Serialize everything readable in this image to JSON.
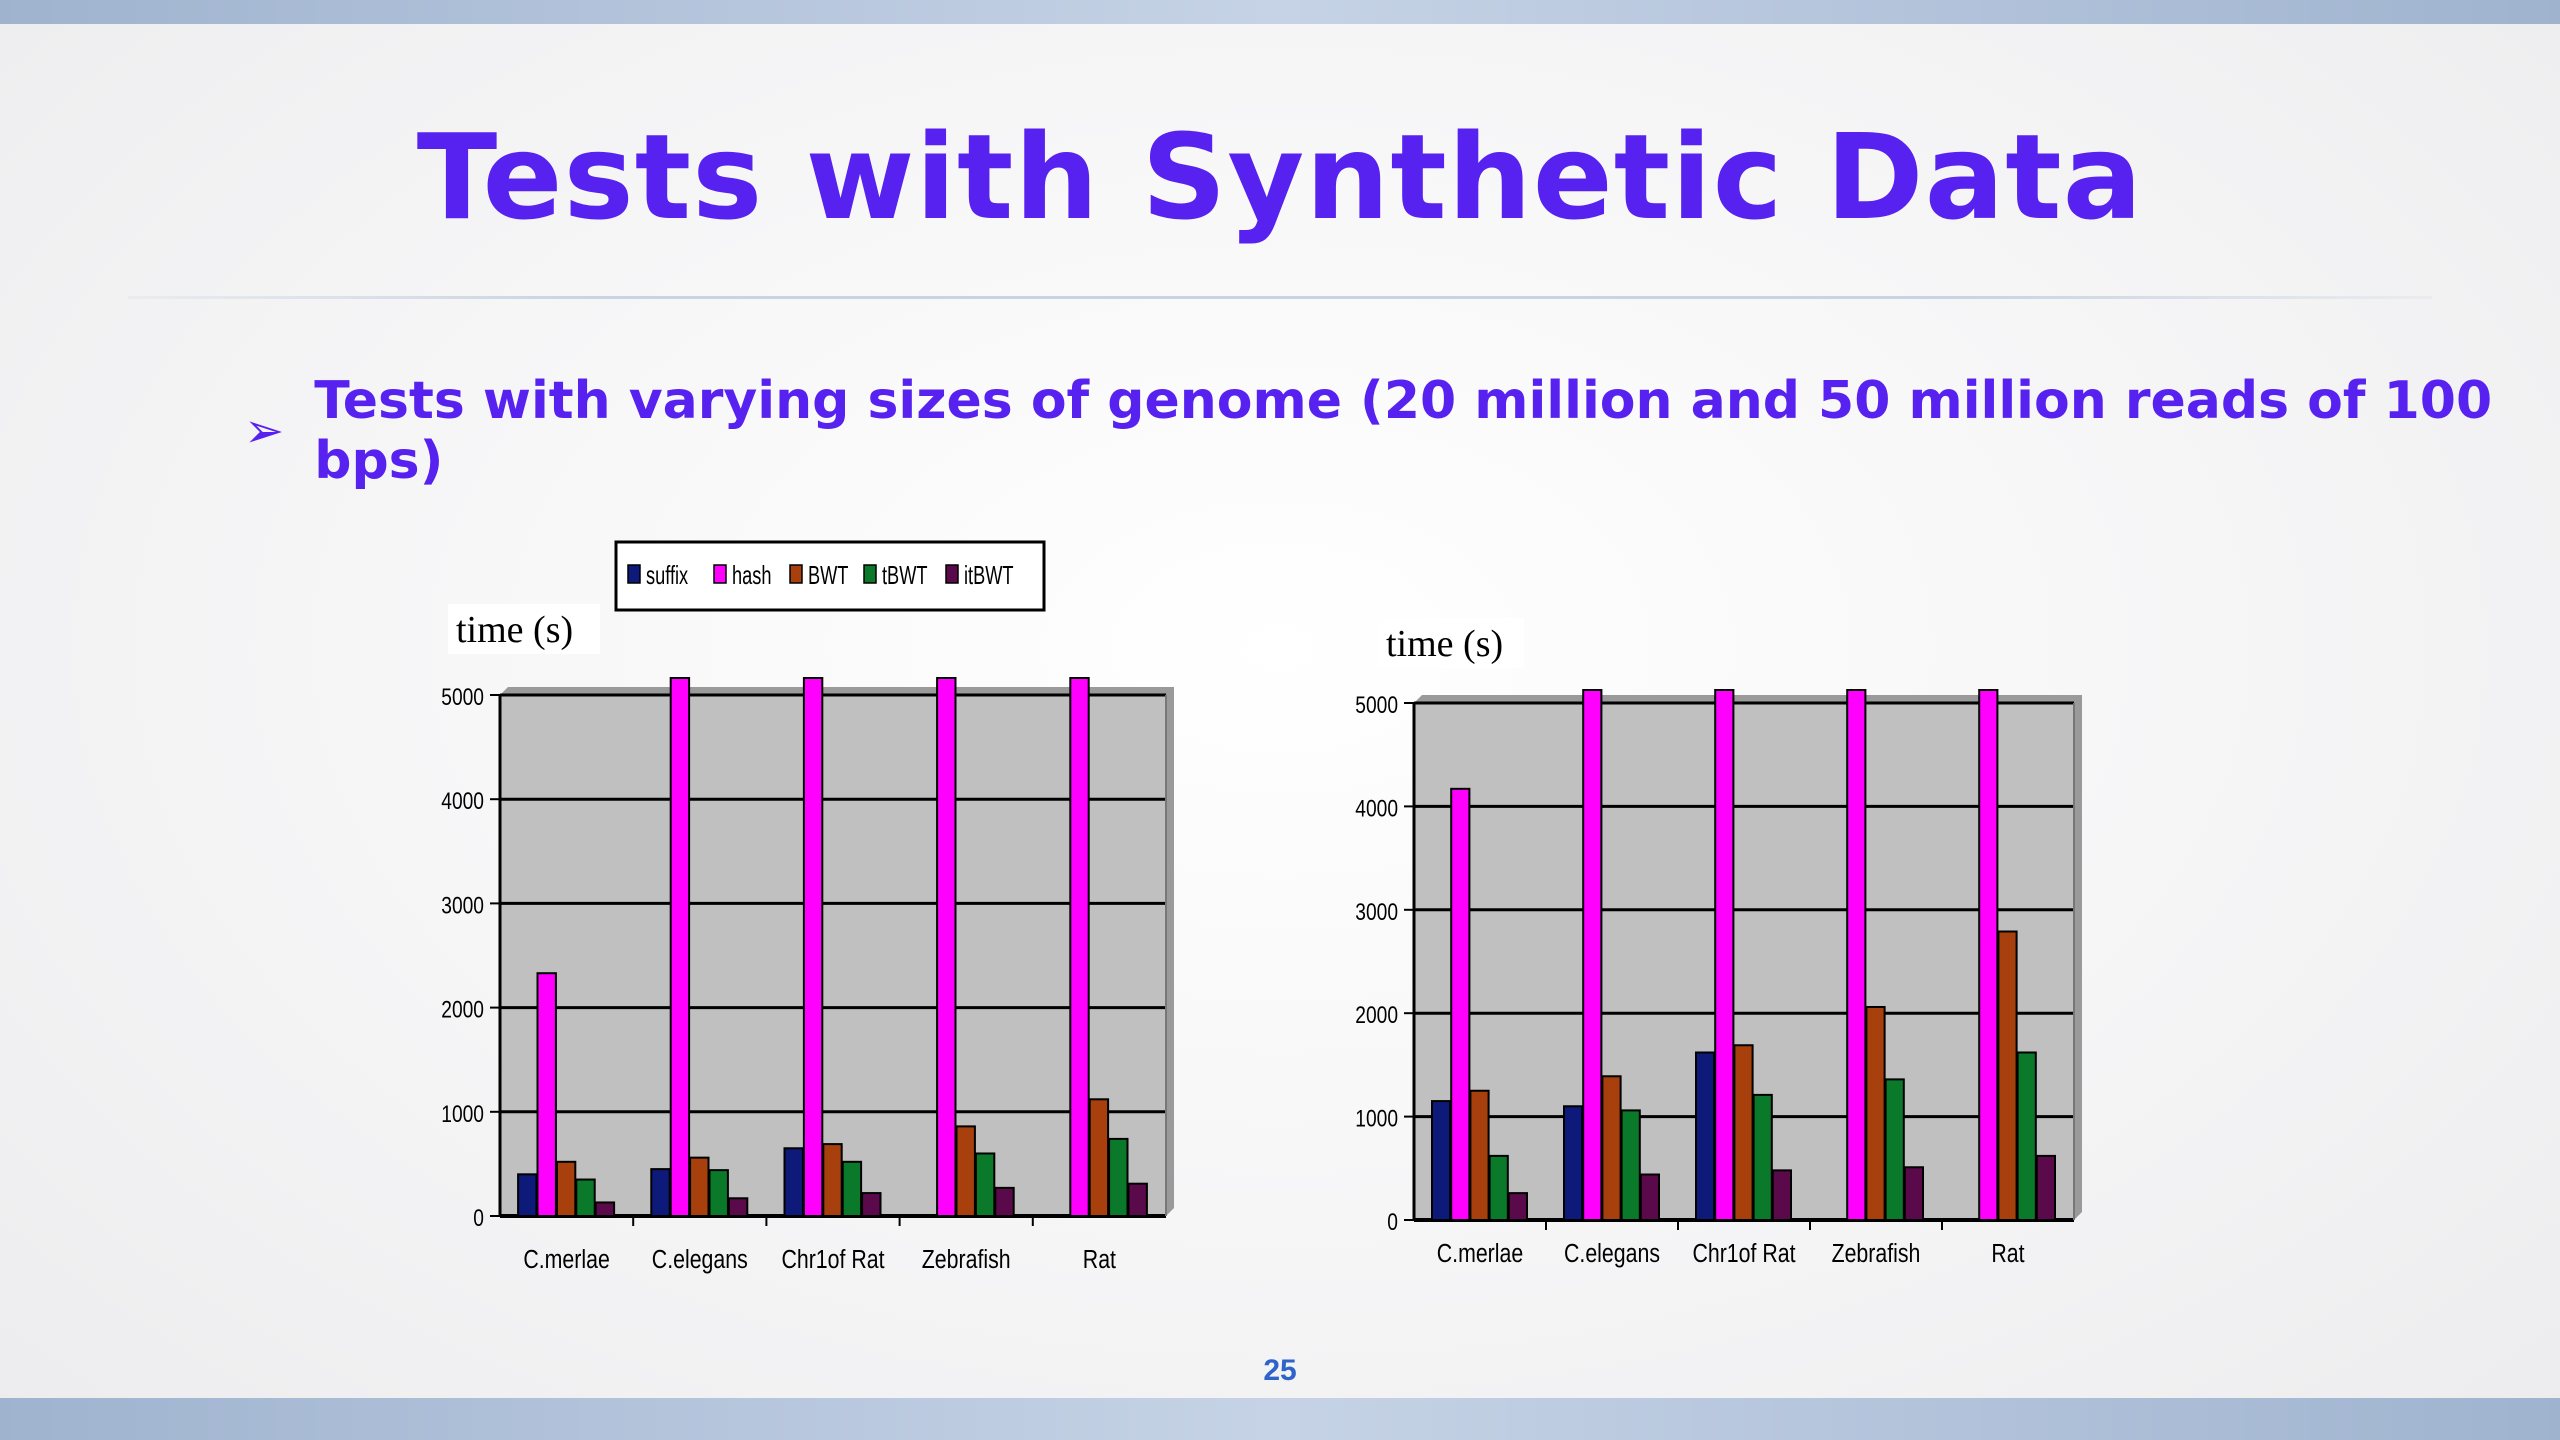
{
  "slide": {
    "title": "Tests with Synthetic Data",
    "bullet_text": "Tests with varying sizes of genome (20 million and 50 million reads of 100 bps)",
    "page_number": "25"
  },
  "colors": {
    "title": "#5722f0",
    "plot_bg": "#c0c0c0",
    "suffix": "#0d1a7a",
    "hash": "#ff00ff",
    "BWT": "#a8400e",
    "tBWT": "#0a7a2a",
    "itBWT": "#5a0a4a"
  },
  "chart_data": [
    {
      "type": "bar",
      "ylabel": "time (s)",
      "ylim": [
        0,
        5000
      ],
      "yticks": [
        0,
        1000,
        2000,
        3000,
        4000,
        5000
      ],
      "categories": [
        "C.merlae",
        "C.elegans",
        "Chr1of Rat",
        "Zebrafish",
        "Rat"
      ],
      "legend": {
        "placement": "top",
        "entries": [
          "suffix",
          "hash",
          "BWT",
          "tBWT",
          "itBWT"
        ]
      },
      "grid": true,
      "series": [
        {
          "name": "suffix",
          "values": [
            400,
            450,
            650,
            0,
            0
          ]
        },
        {
          "name": "hash",
          "values": [
            2330,
            5000,
            5000,
            5000,
            5000
          ]
        },
        {
          "name": "BWT",
          "values": [
            520,
            560,
            690,
            860,
            1120
          ]
        },
        {
          "name": "tBWT",
          "values": [
            350,
            440,
            520,
            600,
            740
          ]
        },
        {
          "name": "itBWT",
          "values": [
            130,
            170,
            220,
            270,
            310
          ]
        }
      ]
    },
    {
      "type": "bar",
      "ylabel": "time (s)",
      "ylim": [
        0,
        5000
      ],
      "yticks": [
        0,
        1000,
        2000,
        3000,
        4000,
        5000
      ],
      "categories": [
        "C.merlae",
        "C.elegans",
        "Chr1of Rat",
        "Zebrafish",
        "Rat"
      ],
      "grid": true,
      "series": [
        {
          "name": "suffix",
          "values": [
            1150,
            1100,
            1620,
            0,
            0
          ]
        },
        {
          "name": "hash",
          "values": [
            4170,
            5000,
            5000,
            5000,
            5000
          ]
        },
        {
          "name": "BWT",
          "values": [
            1250,
            1390,
            1690,
            2060,
            2790
          ]
        },
        {
          "name": "tBWT",
          "values": [
            620,
            1060,
            1210,
            1360,
            1620
          ]
        },
        {
          "name": "itBWT",
          "values": [
            260,
            440,
            480,
            510,
            620
          ]
        }
      ]
    }
  ]
}
